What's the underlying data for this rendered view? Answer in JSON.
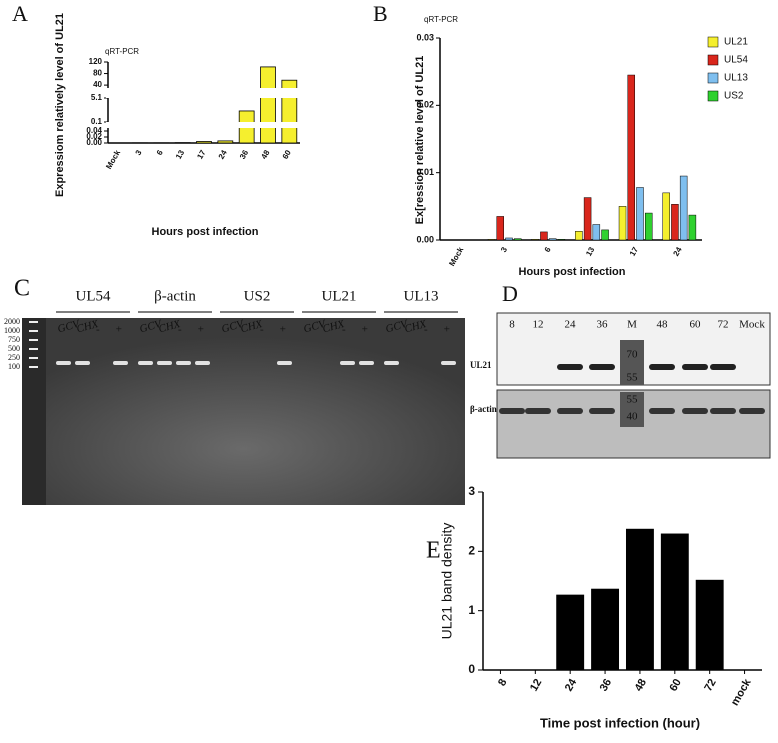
{
  "chart_data": [
    {
      "type": "bar",
      "label": "A",
      "annotation": "qRT-PCR",
      "ylabel": "Expressiom relatively level of UL21",
      "xlabel": "Hours post infection",
      "categories": [
        "Mock",
        "3",
        "6",
        "13",
        "17",
        "24",
        "36",
        "48",
        "60"
      ],
      "values": [
        0,
        0.0005,
        0.0005,
        0.001,
        0.005,
        0.007,
        2.4,
        103,
        57
      ],
      "color": "#f5ef2e",
      "segments": [
        {
          "ylim": [
            0,
            0.05
          ],
          "yticks": [
            {
              "value": 0,
              "label": "0.00"
            },
            {
              "value": 0.02,
              "label": "0.02"
            },
            {
              "value": 0.04,
              "label": "0.04"
            }
          ]
        },
        {
          "ylim": [
            0.1,
            5.1
          ],
          "yticks": [
            0.1,
            5.1
          ]
        },
        {
          "ylim": [
            30,
            120
          ],
          "yticks": [
            40,
            80,
            120
          ]
        }
      ]
    },
    {
      "type": "grouped-bar",
      "label": "B",
      "annotation": "qRT-PCR",
      "ylabel": "Ex[ression relative level of UL21",
      "xlabel": "Hours post infection",
      "categories": [
        "Mock",
        "3",
        "6",
        "13",
        "17",
        "24"
      ],
      "series": [
        {
          "name": "UL21",
          "color": "#f5ef2e",
          "values": [
            0,
            0.0001,
            0.0001,
            0.0013,
            0.005,
            0.007
          ]
        },
        {
          "name": "UL54",
          "color": "#d9261c",
          "values": [
            0,
            0.0035,
            0.0012,
            0.0063,
            0.0245,
            0.0053
          ]
        },
        {
          "name": "UL13",
          "color": "#7fbfef",
          "values": [
            0,
            0.0003,
            0.0002,
            0.0023,
            0.0078,
            0.0095
          ]
        },
        {
          "name": "US2",
          "color": "#2fd12f",
          "values": [
            0,
            0.0002,
            0.0001,
            0.0015,
            0.004,
            0.0037
          ]
        }
      ],
      "ylim": [
        0,
        0.03
      ],
      "yticks": [
        {
          "value": 0,
          "label": "0.00"
        },
        {
          "value": 0.01,
          "label": "0.01"
        },
        {
          "value": 0.02,
          "label": "0.02"
        },
        {
          "value": 0.03,
          "label": "0.03"
        }
      ],
      "legend": "top-right"
    },
    {
      "type": "bar",
      "label": "E",
      "ylabel": "UL21 band density",
      "xlabel": "Time post infection (hour)",
      "categories": [
        "8",
        "12",
        "24",
        "36",
        "48",
        "60",
        "72",
        "mock"
      ],
      "values": [
        0,
        0,
        1.27,
        1.37,
        2.38,
        2.3,
        1.52,
        0
      ],
      "color": "#000000",
      "ylim": [
        0,
        3
      ],
      "yticks": [
        0,
        1,
        2,
        3
      ]
    }
  ],
  "gel": {
    "label": "C",
    "groups": [
      {
        "name": "UL54",
        "lanes": [
          "GCV",
          "CHX",
          "-",
          "+"
        ]
      },
      {
        "name": "β-actin",
        "lanes": [
          "GCV",
          "CHX",
          "-",
          "+"
        ]
      },
      {
        "name": "US2",
        "lanes": [
          "GCV",
          "CHX",
          "-",
          "+"
        ]
      },
      {
        "name": "UL21",
        "lanes": [
          "GCV",
          "CHX",
          "-",
          "+"
        ]
      },
      {
        "name": "UL13",
        "lanes": [
          "GCV",
          "CHX",
          "-",
          "+"
        ]
      }
    ],
    "ladder": [
      2000,
      1000,
      750,
      500,
      250,
      100
    ]
  },
  "blot": {
    "label": "D",
    "lanes": [
      "8",
      "12",
      "24",
      "36",
      "M",
      "48",
      "60",
      "72",
      "Mock"
    ],
    "rows": [
      "UL21",
      "β-actin"
    ],
    "markers": [
      70,
      55,
      55,
      40
    ]
  }
}
